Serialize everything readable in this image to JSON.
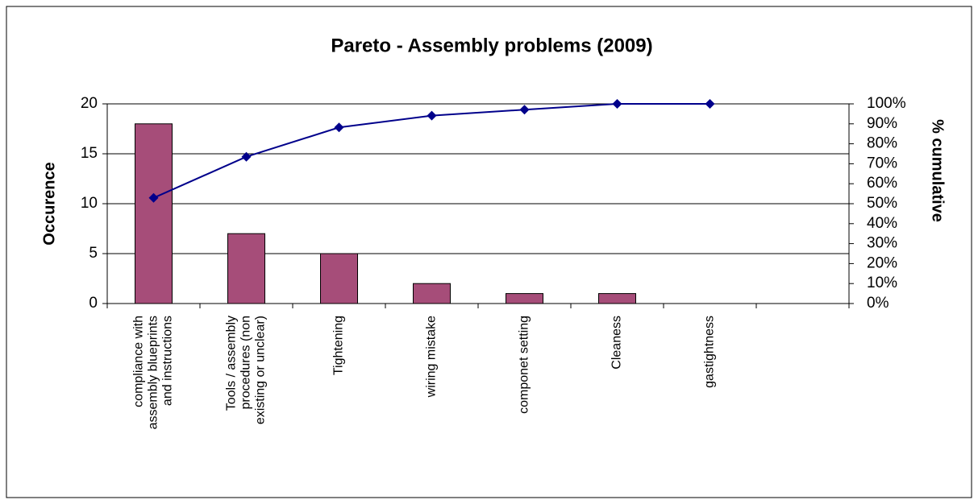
{
  "chart_data": {
    "type": "pareto",
    "title": "Pareto - Assembly problems (2009)",
    "y_label": "Occurence",
    "y2_label": "% cumulative",
    "categories": [
      "compliance with assembly blueprints and instructions",
      "Tools / assembly procedures (non existing or unclear)",
      "Tightening",
      "wiring mistake",
      "componet setting",
      "Cleaness",
      "gastightness",
      null
    ],
    "series": [
      {
        "type": "bar",
        "color": "#a64d79",
        "values": [
          18,
          7,
          5,
          2,
          1,
          1,
          0,
          null
        ]
      },
      {
        "type": "line",
        "axis": "y2",
        "color": "#00008b",
        "values": [
          52.9,
          73.5,
          88.2,
          94.1,
          97.1,
          100,
          100,
          null
        ]
      }
    ],
    "ylim": [
      0,
      20
    ],
    "yticks": [
      0,
      5,
      10,
      15,
      20
    ],
    "y2lim": [
      0,
      100
    ],
    "y2ticks": [
      {
        "value": 0,
        "label": "0%"
      },
      {
        "value": 10,
        "label": "10%"
      },
      {
        "value": 20,
        "label": "20%"
      },
      {
        "value": 30,
        "label": "30%"
      },
      {
        "value": 40,
        "label": "40%"
      },
      {
        "value": 50,
        "label": "50%"
      },
      {
        "value": 60,
        "label": "60%"
      },
      {
        "value": 70,
        "label": "70%"
      },
      {
        "value": 80,
        "label": "80%"
      },
      {
        "value": 90,
        "label": "90%"
      },
      {
        "value": 100,
        "label": "100%"
      }
    ],
    "grid": true
  }
}
